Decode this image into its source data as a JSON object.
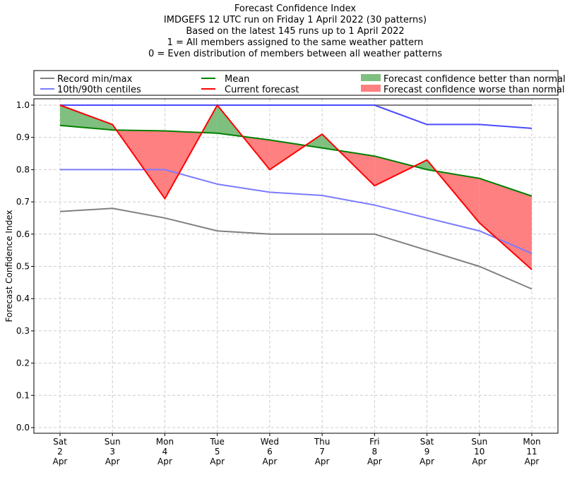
{
  "chart_data": {
    "type": "line",
    "title_lines": [
      "Forecast Confidence Index",
      "IMDGEFS 12 UTC run on Friday 1 April 2022 (30 patterns)",
      "Based on the latest 145 runs up to 1 April 2022",
      "1 = All members assigned to the same weather pattern",
      "0 = Even distribution of members between all weather patterns"
    ],
    "ylabel": "Forecast Confidence Index",
    "xlabel": "",
    "ylim": [
      0,
      1
    ],
    "yticks": [
      "0.0",
      "0.1",
      "0.2",
      "0.3",
      "0.4",
      "0.5",
      "0.6",
      "0.7",
      "0.8",
      "0.9",
      "1.0"
    ],
    "categories": [
      [
        "Sat",
        "2",
        "Apr"
      ],
      [
        "Sun",
        "3",
        "Apr"
      ],
      [
        "Mon",
        "4",
        "Apr"
      ],
      [
        "Tue",
        "5",
        "Apr"
      ],
      [
        "Wed",
        "6",
        "Apr"
      ],
      [
        "Thu",
        "7",
        "Apr"
      ],
      [
        "Fri",
        "8",
        "Apr"
      ],
      [
        "Sat",
        "9",
        "Apr"
      ],
      [
        "Sun",
        "10",
        "Apr"
      ],
      [
        "Mon",
        "11",
        "Apr"
      ]
    ],
    "grid": true,
    "legend_position": "top",
    "series": [
      {
        "key": "record_min",
        "name": "Record min/max",
        "color": "#808080",
        "values": [
          0.67,
          0.68,
          0.65,
          0.61,
          0.6,
          0.6,
          0.6,
          0.55,
          0.5,
          0.43
        ]
      },
      {
        "key": "record_max",
        "name": "",
        "color": "#808080",
        "values": [
          1.0,
          1.0,
          1.0,
          1.0,
          1.0,
          1.0,
          1.0,
          1.0,
          1.0,
          1.0
        ]
      },
      {
        "key": "p10",
        "name": "10th/90th centiles",
        "color": "#7b7bff",
        "values": [
          0.8,
          0.8,
          0.8,
          0.755,
          0.73,
          0.72,
          0.69,
          0.65,
          0.61,
          0.54
        ]
      },
      {
        "key": "p90",
        "name": "",
        "color": "#4b4bff",
        "values": [
          1.0,
          1.0,
          1.0,
          1.0,
          1.0,
          1.0,
          1.0,
          0.94,
          0.94,
          0.928
        ]
      },
      {
        "key": "mean",
        "name": "Mean",
        "color": "#008000",
        "values": [
          0.937,
          0.923,
          0.92,
          0.913,
          0.892,
          0.867,
          0.842,
          0.8,
          0.773,
          0.718
        ]
      },
      {
        "key": "current",
        "name": "Current forecast",
        "color": "#ff0000",
        "values": [
          1.0,
          0.94,
          0.71,
          1.0,
          0.8,
          0.91,
          0.75,
          0.83,
          0.635,
          0.49
        ]
      }
    ],
    "fill_labels": {
      "better": "Forecast confidence better than normal",
      "worse": "Forecast confidence worse than normal"
    },
    "colors": {
      "better_fill": "#7fbf7f",
      "worse_fill": "#ff8080",
      "grid": "#cccccc"
    }
  }
}
